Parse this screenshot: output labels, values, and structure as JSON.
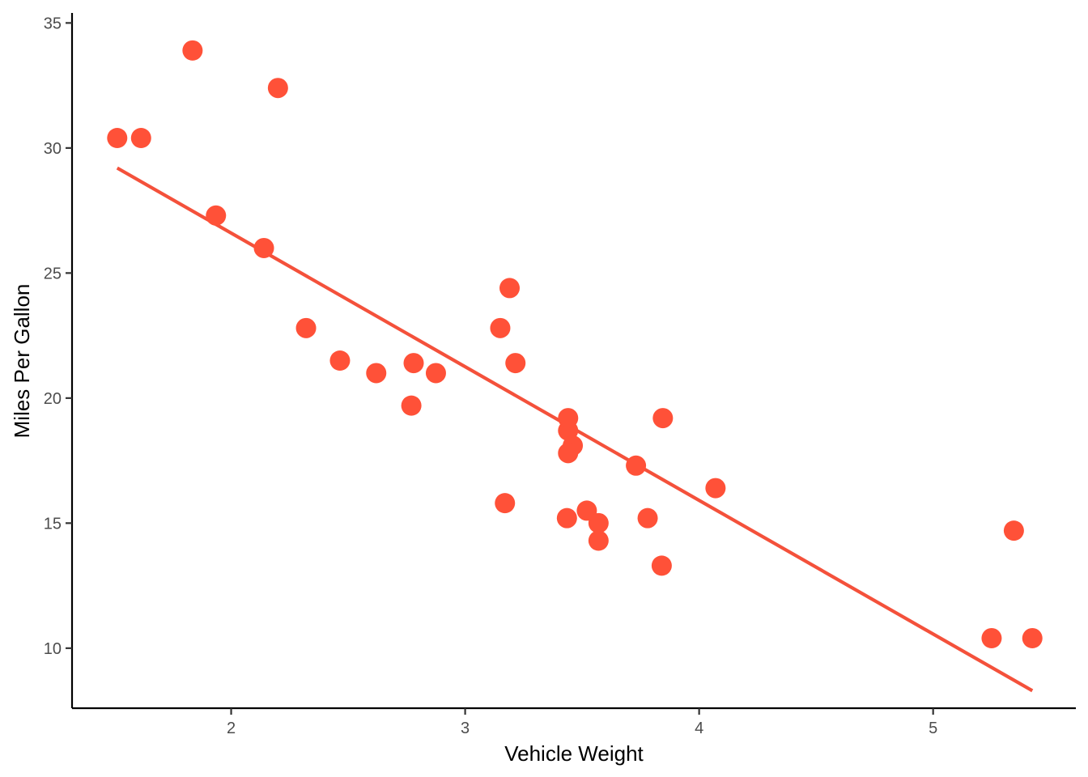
{
  "chart_data": {
    "type": "scatter",
    "title": "",
    "xlabel": "Vehicle Weight",
    "ylabel": "Miles Per Gallon",
    "xlim": [
      1.32,
      5.61
    ],
    "ylim": [
      7.6,
      35.4
    ],
    "xticks": [
      2,
      3,
      4,
      5
    ],
    "yticks": [
      10,
      15,
      20,
      25,
      30,
      35
    ],
    "xtick_labels": [
      "2",
      "3",
      "4",
      "5"
    ],
    "ytick_labels": [
      "10",
      "15",
      "20",
      "25",
      "30",
      "35"
    ],
    "grid": false,
    "legend": "none",
    "point_color": "#FF5138",
    "line_color": "#F4513B",
    "points": [
      {
        "x": 2.62,
        "y": 21.0
      },
      {
        "x": 2.875,
        "y": 21.0
      },
      {
        "x": 2.32,
        "y": 22.8
      },
      {
        "x": 3.215,
        "y": 21.4
      },
      {
        "x": 3.44,
        "y": 18.7
      },
      {
        "x": 3.46,
        "y": 18.1
      },
      {
        "x": 3.57,
        "y": 14.3
      },
      {
        "x": 3.19,
        "y": 24.4
      },
      {
        "x": 3.15,
        "y": 22.8
      },
      {
        "x": 3.44,
        "y": 19.2
      },
      {
        "x": 3.44,
        "y": 17.8
      },
      {
        "x": 4.07,
        "y": 16.4
      },
      {
        "x": 3.73,
        "y": 17.3
      },
      {
        "x": 3.78,
        "y": 15.2
      },
      {
        "x": 5.25,
        "y": 10.4
      },
      {
        "x": 5.424,
        "y": 10.4
      },
      {
        "x": 5.345,
        "y": 14.7
      },
      {
        "x": 2.2,
        "y": 32.4
      },
      {
        "x": 1.615,
        "y": 30.4
      },
      {
        "x": 1.835,
        "y": 33.9
      },
      {
        "x": 2.465,
        "y": 21.5
      },
      {
        "x": 3.52,
        "y": 15.5
      },
      {
        "x": 3.435,
        "y": 15.2
      },
      {
        "x": 3.84,
        "y": 13.3
      },
      {
        "x": 3.845,
        "y": 19.2
      },
      {
        "x": 1.935,
        "y": 27.3
      },
      {
        "x": 2.14,
        "y": 26.0
      },
      {
        "x": 1.513,
        "y": 30.4
      },
      {
        "x": 3.17,
        "y": 15.8
      },
      {
        "x": 2.77,
        "y": 19.7
      },
      {
        "x": 3.57,
        "y": 15.0
      },
      {
        "x": 2.78,
        "y": 21.4
      }
    ],
    "trend_line": {
      "x": [
        1.513,
        5.424
      ],
      "y": [
        29.2,
        8.3
      ]
    }
  }
}
